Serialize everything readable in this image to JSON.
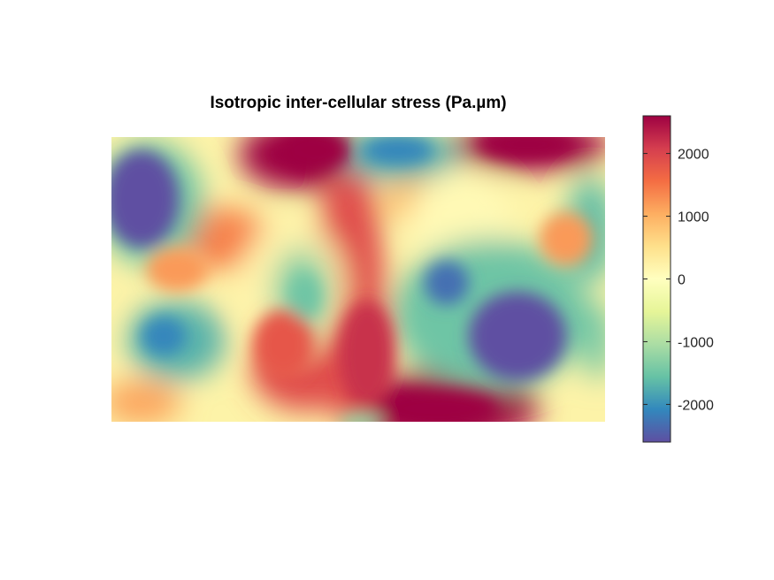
{
  "chart_data": {
    "type": "heatmap",
    "title": "Isotropic inter-cellular stress (Pa.µm)",
    "xlabel": "",
    "ylabel": "",
    "axes_visible": false,
    "colormap": "Spectral (reversed): blue = negative, yellow = 0, red = positive",
    "colormap_stops": [
      "#5e4fa2",
      "#3288bd",
      "#66c2a5",
      "#abdda4",
      "#e6f598",
      "#ffffbf",
      "#fee08b",
      "#fdae61",
      "#f46d43",
      "#d53e4f",
      "#9e0142"
    ],
    "colorbar": {
      "limits": [
        -2600,
        2600
      ],
      "ticks": [
        -2000,
        -1000,
        0,
        1000,
        2000
      ],
      "tick_labels": [
        "-2000",
        "-1000",
        "0",
        "1000",
        "2000"
      ]
    },
    "field_features": [
      {
        "description": "strong negative region, left-top",
        "value": -2600
      },
      {
        "description": "strong negative region, right-center",
        "value": -2600
      },
      {
        "description": "negative pocket, right-upper",
        "value": -2300
      },
      {
        "description": "negative pocket, left-lower",
        "value": -2100
      },
      {
        "description": "negative region, top-center",
        "value": -2200
      },
      {
        "description": "peak positive, top-center-left",
        "value": 2600
      },
      {
        "description": "peak positive, top-right",
        "value": 2600
      },
      {
        "description": "peak positive, bottom-center",
        "value": 2600
      },
      {
        "description": "positive band, center vertical",
        "value": 2000
      }
    ]
  }
}
